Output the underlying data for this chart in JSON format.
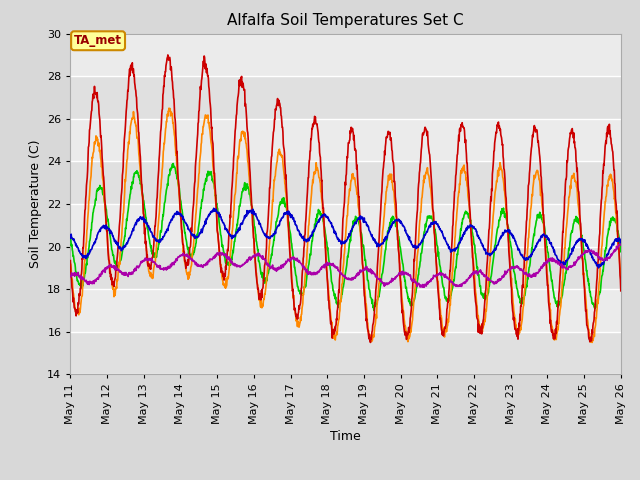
{
  "title": "Alfalfa Soil Temperatures Set C",
  "xlabel": "Time",
  "ylabel": "Soil Temperature (C)",
  "ylim": [
    14,
    30
  ],
  "xlim_days": [
    11,
    26
  ],
  "tick_days": [
    11,
    12,
    13,
    14,
    15,
    16,
    17,
    18,
    19,
    20,
    21,
    22,
    23,
    24,
    25,
    26
  ],
  "tick_labels": [
    "May 11",
    "May 12",
    "May 13",
    "May 14",
    "May 15",
    "May 16",
    "May 17",
    "May 18",
    "May 19",
    "May 20",
    "May 21",
    "May 22",
    "May 23",
    "May 24",
    "May 25",
    "May 26"
  ],
  "yticks": [
    14,
    16,
    18,
    20,
    22,
    24,
    26,
    28,
    30
  ],
  "colors": {
    "-2cm": "#cc0000",
    "-4cm": "#ff8800",
    "-8cm": "#00cc00",
    "-16cm": "#0000cc",
    "-32cm": "#aa00aa"
  },
  "annotation_text": "TA_met",
  "annotation_bbox_facecolor": "#ffff99",
  "annotation_bbox_edgecolor": "#cc8800",
  "fig_facecolor": "#d8d8d8",
  "plot_facecolor": "#ebebeb"
}
